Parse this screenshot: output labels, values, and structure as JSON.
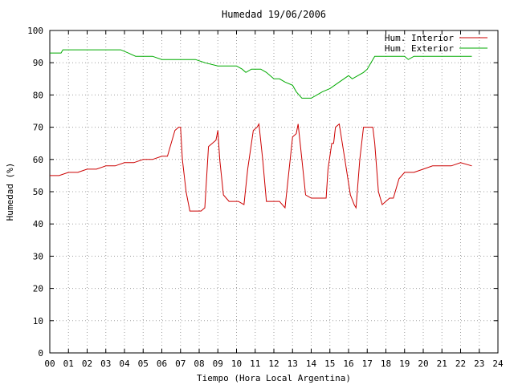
{
  "chart_data": {
    "type": "line",
    "title": "Humedad 19/06/2006",
    "xlabel": "Tiempo (Hora Local Argentina)",
    "ylabel": "Humedad (%)",
    "xlim": [
      0,
      24
    ],
    "ylim": [
      0,
      100
    ],
    "x_ticks": [
      0,
      1,
      2,
      3,
      4,
      5,
      6,
      7,
      8,
      9,
      10,
      11,
      12,
      13,
      14,
      15,
      16,
      17,
      18,
      19,
      20,
      21,
      22,
      23,
      24
    ],
    "x_tick_labels": [
      "00",
      "01",
      "02",
      "03",
      "04",
      "05",
      "06",
      "07",
      "08",
      "09",
      "10",
      "11",
      "12",
      "13",
      "14",
      "15",
      "16",
      "17",
      "18",
      "19",
      "20",
      "21",
      "22",
      "23",
      "24"
    ],
    "y_ticks": [
      0,
      10,
      20,
      30,
      40,
      50,
      60,
      70,
      80,
      90,
      100
    ],
    "y_tick_labels": [
      "0",
      "10",
      "20",
      "30",
      "40",
      "50",
      "60",
      "70",
      "80",
      "90",
      "100"
    ],
    "grid": true,
    "legend_position": "top-right",
    "series": [
      {
        "name": "Hum. Interior",
        "color": "#cc0000",
        "x": [
          0,
          0.5,
          1,
          1.5,
          2,
          2.5,
          3,
          3.5,
          4,
          4.5,
          5,
          5.5,
          6,
          6.3,
          6.5,
          6.7,
          6.9,
          7.0,
          7.1,
          7.3,
          7.5,
          7.8,
          8.1,
          8.3,
          8.5,
          8.7,
          8.9,
          9.0,
          9.1,
          9.3,
          9.6,
          10.1,
          10.4,
          10.6,
          10.9,
          11.1,
          11.2,
          11.4,
          11.6,
          12.1,
          12.3,
          12.6,
          13.0,
          13.2,
          13.3,
          13.5,
          13.7,
          14.0,
          14.4,
          14.6,
          14.8,
          14.9,
          15.1,
          15.2,
          15.3,
          15.5,
          15.8,
          16.1,
          16.3,
          16.4,
          16.6,
          16.8,
          17.3,
          17.4,
          17.6,
          17.8,
          18.2,
          18.4,
          18.7,
          19.0,
          19.5,
          20.0,
          20.5,
          21.0,
          21.5,
          22.0,
          22.6
        ],
        "y": [
          55,
          55,
          56,
          56,
          57,
          57,
          58,
          58,
          59,
          59,
          60,
          60,
          61,
          61,
          65,
          69,
          70,
          70,
          60,
          50,
          44,
          44,
          44,
          45,
          64,
          65,
          66,
          69,
          60,
          49,
          47,
          47,
          46,
          57,
          69,
          70,
          71,
          60,
          47,
          47,
          47,
          45,
          67,
          68,
          71,
          60,
          49,
          48,
          48,
          48,
          48,
          57,
          65,
          65,
          70,
          71,
          60,
          49,
          46,
          45,
          60,
          70,
          70,
          65,
          50,
          46,
          48,
          48,
          54,
          56,
          56,
          57,
          58,
          58,
          58,
          59,
          58
        ]
      },
      {
        "name": "Hum. Exterior",
        "color": "#00aa00",
        "x": [
          0,
          0.6,
          0.7,
          1.5,
          2.5,
          3.8,
          4.2,
          4.6,
          5.0,
          5.5,
          6.0,
          6.5,
          7.0,
          7.8,
          8.3,
          9.0,
          9.5,
          10.0,
          10.3,
          10.5,
          10.8,
          11.3,
          11.6,
          12.0,
          12.3,
          12.6,
          13.0,
          13.2,
          13.5,
          14.0,
          14.3,
          14.6,
          15.0,
          15.5,
          16.0,
          16.2,
          16.5,
          16.8,
          17.0,
          17.2,
          17.4,
          18.0,
          18.6,
          19.0,
          19.2,
          19.5,
          20.0,
          20.5,
          21.0,
          21.5,
          22.0,
          22.6
        ],
        "y": [
          93,
          93,
          94,
          94,
          94,
          94,
          93,
          92,
          92,
          92,
          91,
          91,
          91,
          91,
          90,
          89,
          89,
          89,
          88,
          87,
          88,
          88,
          87,
          85,
          85,
          84,
          83,
          81,
          79,
          79,
          80,
          81,
          82,
          84,
          86,
          85,
          86,
          87,
          88,
          90,
          92,
          92,
          92,
          92,
          91,
          92,
          92,
          92,
          92,
          92,
          92,
          92
        ]
      }
    ]
  }
}
